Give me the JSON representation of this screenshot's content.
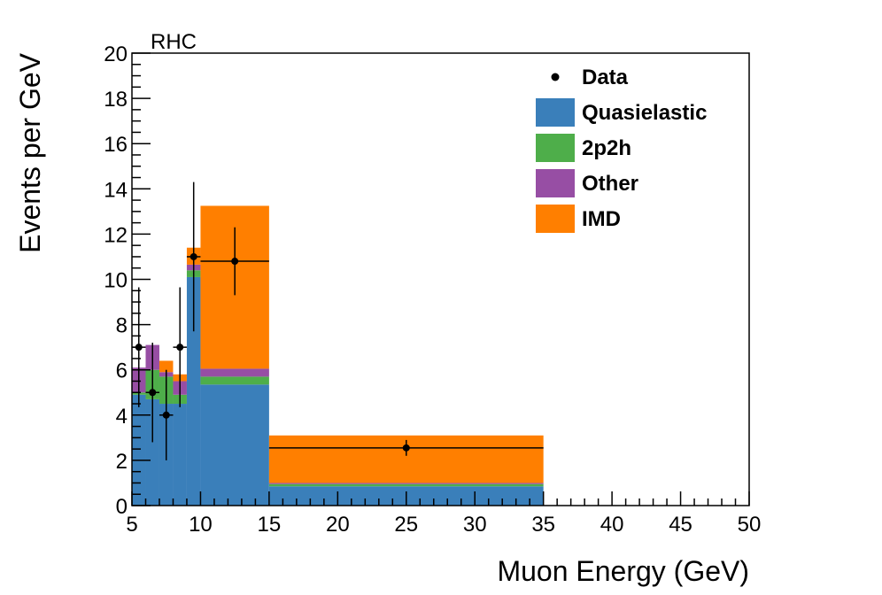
{
  "chart_data": {
    "type": "bar",
    "title": "",
    "annotation": "RHC",
    "xlabel": "Muon Energy (GeV)",
    "ylabel": "Events per GeV",
    "xlim": [
      5,
      50
    ],
    "ylim": [
      0,
      20
    ],
    "x_ticks": [
      "5",
      "10",
      "15",
      "20",
      "25",
      "30",
      "35",
      "40",
      "45",
      "50"
    ],
    "y_ticks": [
      "0",
      "2",
      "4",
      "6",
      "8",
      "10",
      "12",
      "14",
      "16",
      "18",
      "20"
    ],
    "bins": [
      [
        5,
        6
      ],
      [
        6,
        7
      ],
      [
        7,
        8
      ],
      [
        8,
        9
      ],
      [
        9,
        10
      ],
      [
        10,
        15
      ],
      [
        15,
        35
      ]
    ],
    "stack": [
      {
        "name": "Quasielastic",
        "color": "#3a7fba",
        "values": [
          4.9,
          4.7,
          4.5,
          4.5,
          10.1,
          5.35,
          0.85
        ]
      },
      {
        "name": "2p2h",
        "color": "#4eae4a",
        "values": [
          0.1,
          1.3,
          1.2,
          0.4,
          0.3,
          0.35,
          0.1
        ]
      },
      {
        "name": "Other",
        "color": "#974ea4",
        "values": [
          1.1,
          1.1,
          0.2,
          0.6,
          0.25,
          0.35,
          0.05
        ]
      },
      {
        "name": "IMD",
        "color": "#ff7f00",
        "values": [
          0.0,
          0.0,
          0.5,
          0.3,
          0.75,
          7.2,
          2.1
        ]
      }
    ],
    "data_points": {
      "name": "Data",
      "x": [
        5.5,
        6.5,
        7.5,
        8.5,
        9.5,
        12.5,
        25.0
      ],
      "y": [
        7.0,
        5.0,
        4.0,
        7.0,
        11.0,
        10.8,
        2.55
      ],
      "xerr": [
        0.5,
        0.5,
        0.5,
        0.5,
        0.5,
        2.5,
        10.0
      ],
      "yerr_low": [
        2.65,
        2.2,
        2.0,
        2.65,
        3.3,
        1.5,
        0.35
      ],
      "yerr_high": [
        2.65,
        2.2,
        2.0,
        2.65,
        3.3,
        1.5,
        0.35
      ]
    },
    "legend": {
      "placement": "top-right",
      "entries": [
        {
          "label": "Data",
          "kind": "marker",
          "color": "#000000"
        },
        {
          "label": "Quasielastic",
          "kind": "fill",
          "color": "#3a7fba"
        },
        {
          "label": "2p2h",
          "kind": "fill",
          "color": "#4eae4a"
        },
        {
          "label": "Other",
          "kind": "fill",
          "color": "#974ea4"
        },
        {
          "label": "IMD",
          "kind": "fill",
          "color": "#ff7f00"
        }
      ]
    },
    "grid": false
  }
}
